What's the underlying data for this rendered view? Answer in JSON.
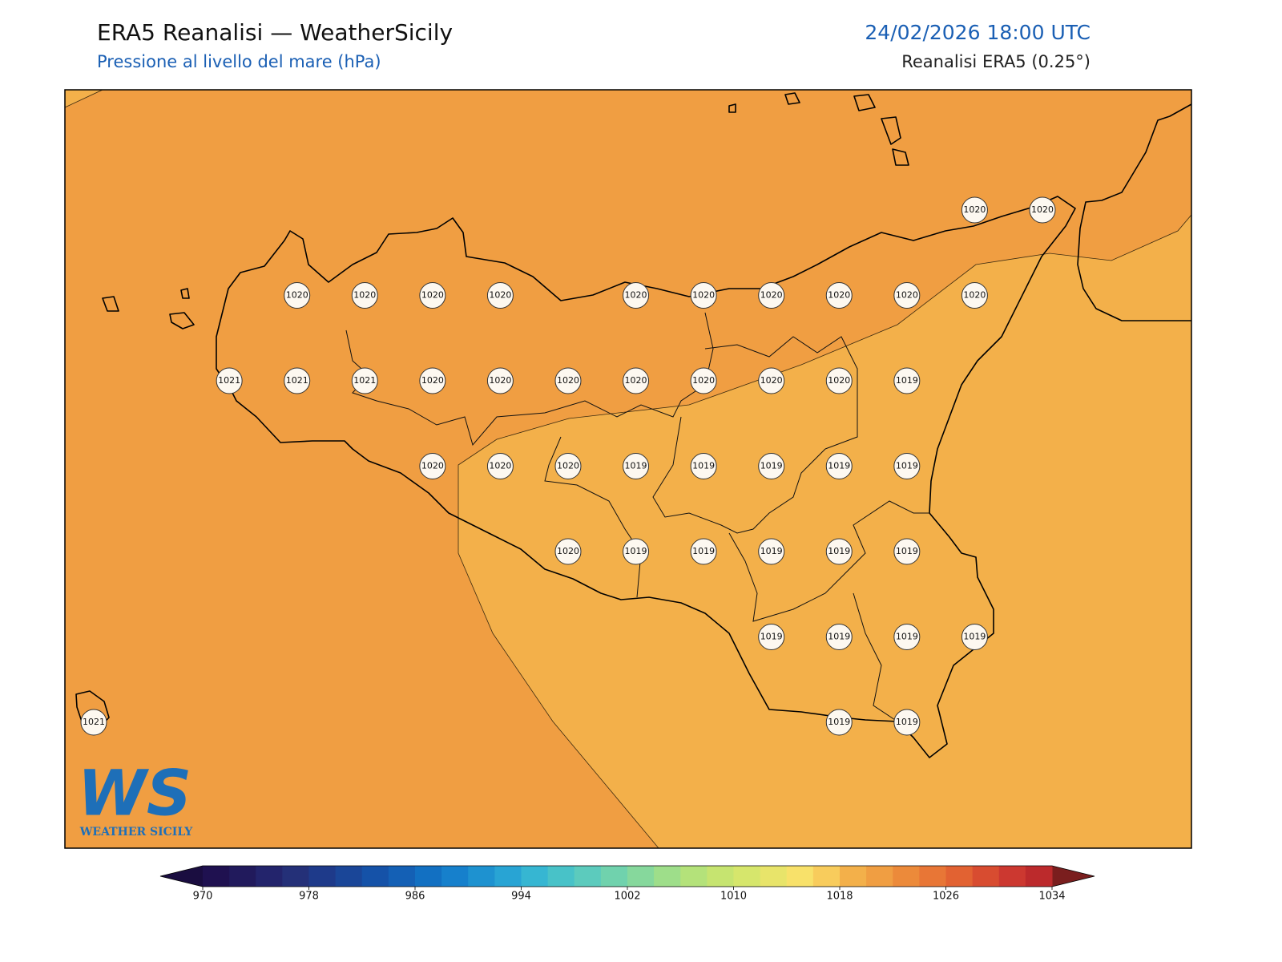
{
  "header": {
    "title": "ERA5 Reanalisi — WeatherSicily",
    "subtitle": "Pressione al livello del mare (hPa)",
    "datetime": "24/02/2026 18:00 UTC",
    "source": "Reanalisi ERA5 (0.25°)"
  },
  "map": {
    "labels": [
      [
        null,
        null,
        null,
        null,
        null,
        null,
        null,
        null,
        null,
        null,
        null,
        null,
        null,
        1020,
        1020
      ],
      [
        null,
        null,
        null,
        1020,
        1020,
        1020,
        1020,
        null,
        1020,
        1020,
        1020,
        1020,
        1020,
        1020,
        null
      ],
      [
        null,
        null,
        1021,
        1021,
        1021,
        1020,
        1020,
        1020,
        1020,
        1020,
        1020,
        1020,
        1019,
        null,
        null
      ],
      [
        null,
        null,
        null,
        null,
        null,
        1020,
        1020,
        1020,
        1019,
        1019,
        1019,
        1019,
        1019,
        null,
        null
      ],
      [
        null,
        null,
        null,
        null,
        null,
        null,
        null,
        1020,
        1019,
        1019,
        1019,
        1019,
        1019,
        null,
        null
      ],
      [
        null,
        null,
        null,
        null,
        null,
        null,
        null,
        null,
        null,
        null,
        1019,
        1019,
        1019,
        1019,
        null
      ],
      [
        1021,
        null,
        null,
        null,
        null,
        null,
        null,
        null,
        null,
        null,
        null,
        1019,
        1019,
        null,
        null
      ]
    ]
  },
  "colorbar": {
    "lim": [
      970,
      1034
    ],
    "ticks": [
      970,
      978,
      986,
      994,
      1002,
      1010,
      1018,
      1026,
      1034
    ],
    "under": "#1a0d40",
    "over": "#7a1e1e",
    "colors": [
      "#1f1150",
      "#211a5c",
      "#23246c",
      "#243078",
      "#1e3a8a",
      "#1a4698",
      "#1552a8",
      "#1460b5",
      "#1270c2",
      "#1680cc",
      "#1e92d0",
      "#28a4d4",
      "#36b6d2",
      "#48c2c8",
      "#5ccbbd",
      "#70d2ad",
      "#86d89c",
      "#9ede8a",
      "#b4e27a",
      "#c6e470",
      "#d6e66c",
      "#e8e46a",
      "#f8e16a",
      "#f8cc5c",
      "#f3b04a",
      "#f09e42",
      "#ec8a3a",
      "#e87636",
      "#e26232",
      "#d84c30",
      "#cc3830",
      "#bc2a2c"
    ]
  },
  "logo": {
    "mark": "WS",
    "text": "WEATHER SICILY"
  }
}
